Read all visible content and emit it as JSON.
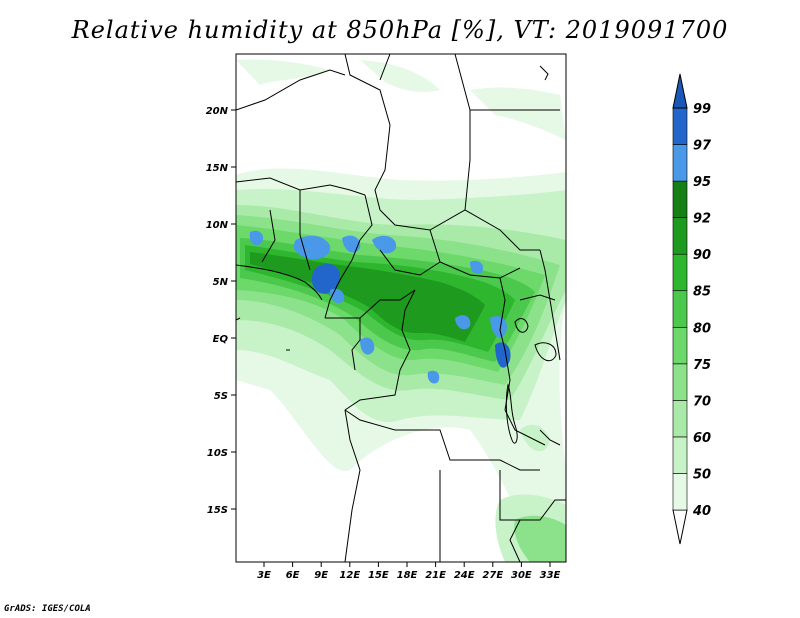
{
  "title": "Relative humidity at 850hPa [%], VT: 2019091700",
  "credit": "GrADS: IGES/COLA",
  "map": {
    "lat_ticks": [
      "20N",
      "15N",
      "10N",
      "5N",
      "EQ",
      "5S",
      "10S",
      "15S"
    ],
    "lon_ticks": [
      "3E",
      "6E",
      "9E",
      "12E",
      "15E",
      "18E",
      "21E",
      "24E",
      "27E",
      "30E",
      "33E"
    ]
  },
  "colorbar": {
    "labels": [
      "40",
      "50",
      "60",
      "70",
      "75",
      "80",
      "85",
      "90",
      "92",
      "95",
      "97",
      "99"
    ],
    "colors": [
      "#ffffff",
      "#e6f9e6",
      "#c8f2c8",
      "#aaeaa8",
      "#8ce28a",
      "#6cd96a",
      "#4cc94c",
      "#2eb62e",
      "#1e9a1e",
      "#168016",
      "#4a98e8",
      "#2266cc",
      "#1a58b8"
    ]
  }
}
